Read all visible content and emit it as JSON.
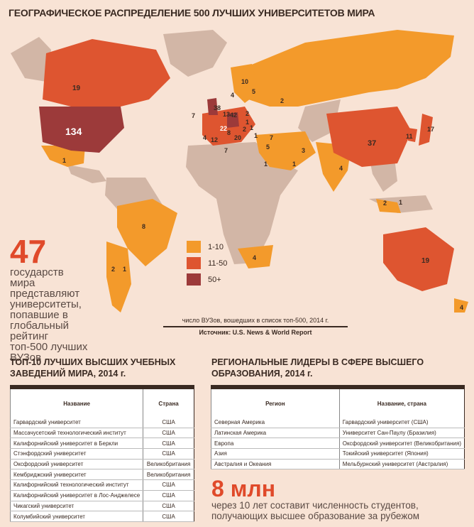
{
  "title": "ГЕОГРАФИЧЕСКОЕ РАСПРЕДЕЛЕНИЕ 500 ЛУЧШИХ УНИВЕРСИТЕТОВ МИРА",
  "colors": {
    "low": "#f39a2b",
    "mid": "#de5530",
    "high": "#9c3a3a",
    "none": "#d2b6a6"
  },
  "map_labels": {
    "canada": "19",
    "usa": "134",
    "mexico": "1",
    "brazil": "8",
    "chile": "2",
    "argentina": "1",
    "russia": "2",
    "china": "37",
    "japan": "17",
    "korea": "11",
    "india": "4",
    "iran": "3",
    "saudi": "1",
    "egypt": "1",
    "israel": "5",
    "turkey": "7",
    "singapore": "2",
    "malaysia": "1",
    "australia": "19",
    "newzealand": "4",
    "southafrica": "4",
    "uk": "38",
    "france": "22",
    "germany": "42",
    "spain": "12",
    "portugal": "4",
    "italy": "20",
    "netherlands": "13",
    "belgium": "7",
    "sweden": "10",
    "norway": "4",
    "finland": "5",
    "poland": "2",
    "ireland": "7",
    "greece": "1",
    "czech": "1",
    "austria": "2",
    "switzerland": "8",
    "hungary": "1"
  },
  "legend": [
    {
      "label": "1-10",
      "color": "#f39a2b"
    },
    {
      "label": "11-50",
      "color": "#de5530"
    },
    {
      "label": "50+",
      "color": "#9c3a3a"
    }
  ],
  "stat_countries": {
    "number": "47",
    "text": "государств мира представляют университеты, попавшие в глобальный рейтинг топ-500 лучших ВУЗов"
  },
  "caption": {
    "text": "число ВУЗов, вошедших в список топ-500, 2014 г.",
    "source": "Источник: U.S. News & World Report"
  },
  "top10": {
    "title": "ТОП-10 ЛУЧШИХ ВЫСШИХ УЧЕБНЫХ ЗАВЕДЕНИЙ МИРА, 2014 г.",
    "headers": [
      "Название",
      "Страна"
    ],
    "rows": [
      [
        "Гарвардский университет",
        "США"
      ],
      [
        "Массачусетский технологический институт",
        "США"
      ],
      [
        "Калифорнийский университет в Беркли",
        "США"
      ],
      [
        "Стэнфордский университет",
        "США"
      ],
      [
        "Оксфордский университет",
        "Великобритания"
      ],
      [
        "Кембриджский университет",
        "Великобритания"
      ],
      [
        "Калифорнийский технологический институт",
        "США"
      ],
      [
        "Калифорнийский университет в Лос-Анджелесе",
        "США"
      ],
      [
        "Чикагский университет",
        "США"
      ],
      [
        "Колумбийский университет",
        "США"
      ]
    ]
  },
  "regional": {
    "title": "РЕГИОНАЛЬНЫЕ ЛИДЕРЫ В СФЕРЕ ВЫСШЕГО ОБРАЗОВАНИЯ, 2014 г.",
    "headers": [
      "Регион",
      "Название, страна"
    ],
    "rows": [
      [
        "Северная Америка",
        "Гарвардский университет (США)"
      ],
      [
        "Латинская Америка",
        "Университет Сан-Паулу (Бразилия)"
      ],
      [
        "Европа",
        "Оксфордский университет (Великобритания)"
      ],
      [
        "Азия",
        "Токийский университет (Япония)"
      ],
      [
        "Австралия и Океания",
        "Мельбурнский университет (Австралия)"
      ]
    ]
  },
  "stat_students": {
    "number": "8 млн",
    "text": "через 10 лет составит численность студентов, получающих высшее образование за рубежом"
  }
}
